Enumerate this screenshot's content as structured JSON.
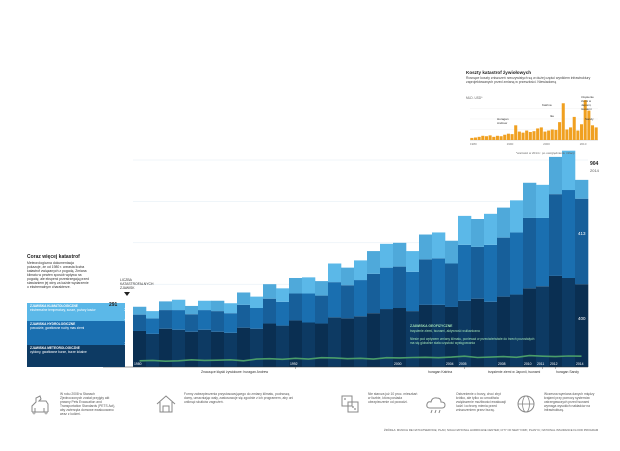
{
  "sidebar": {
    "title": "Coraz więcej katastrof",
    "text": "Meteorologiczna dokumentacja pokazuje, że od 1980 r. wzrasta liczba katastrof związanych z pogodą. Zmiana klimatu w pewien sposób wpływa na pogodę; ale eksperci przestrzegają przed stawianiem jej winy za każde wydarzenie o ekstremalnym charakterze.",
    "legend": [
      {
        "label": "ZJAWISKA KLIMATOLOGICZNE",
        "desc": "ekstremalne temperatury, susze, pożary lasów",
        "color": "#5bb8e8"
      },
      {
        "label": "ZJAWISKA HYDROLOGICZNE",
        "desc": "powodzie, gwałtowne ruchy mas ziemi",
        "color": "#1a6fb0"
      },
      {
        "label": "ZJAWISKA METEOROLOGICZNE",
        "desc": "cyklony, gwałtowne burze, burze lokalne",
        "color": "#0d3a63"
      }
    ]
  },
  "callout": {
    "label": "LICZBA KATASTROFALNYCH ZJAWISK"
  },
  "start_values": {
    "total": "291",
    "climatological": "38",
    "hydrological": "79",
    "meteorological": "174"
  },
  "end_values": {
    "total": "904",
    "year": "2014",
    "climatological": "91",
    "hydrological": "413",
    "meteorological": "400"
  },
  "geo_label": {
    "title": "ZJAWISKA GEOFIZYCZNE",
    "desc1": "trzęsienie ziemi, tsunami, aktywność wulkaniczna",
    "desc2": "Niesie pod wpływem zmiany klimatu, ponieważ w przeciwieństwie do trzech pozostałych",
    "desc3": "ma się globalnie stała częstość występowania"
  },
  "event_labels": [
    "Znaczące klęski żywiołowe: huragan Andrew",
    "huragan Katrina",
    "trzęsienie ziemi w Japonii, tsunami",
    "huragan Sandy"
  ],
  "inset": {
    "title": "Koszty katastrof żywiołowych",
    "subtitle": "Rosnące koszty zniszczeń rzeczywistych są w dużej części wynikiem infrastruktury zaprojektowanych przed zmianą w przeszłości. Niewiadomą",
    "ylabel": "MLD. USD*",
    "note": "*wartości w 2014 r. po uwzględnieniu inflacji",
    "annotations": [
      "Huragan Andrew",
      "Katrina",
      "Ike",
      "trzęsienie ziemi w Japonii, tsunami",
      "Sandy"
    ]
  },
  "footer": [
    {
      "icon": "trojan-horse-icon",
      "text": "W roku 2008 w Stanach Zjednoczonych został przyjęty akt prawny Pets Evacuation and Transportation Standards (PETS Act), aby zwierzęta domowe ewakuowano wraz z ludźmi."
    },
    {
      "icon": "house-icon",
      "text": "Formy zabezpieczenia przystosowującego do zmiany klimatu, podnoszą domy, umacniając wały, zastosowuje się zgodnie z ich programem, aby oni uniknąć skutków zagrożeń."
    },
    {
      "icon": "dice-icon",
      "text": "Nie starcza już 10 proc. mieszkań w liczbie, która posiada ubezpieczenie od powodzi."
    },
    {
      "icon": "cloud-icon",
      "text": "Ostrzeżenie o burzy, choć zbyt krótko, ale tylko co umożliwia zwiększenie możliwości ewakuacji ludzi i ochrony mienia przed zniszczeniem przez burzę."
    },
    {
      "icon": "globe-icon",
      "text": "Wczesna wymiana danych między krajami przy pomocy systemów ostrzegawczych przed tsunami wymaga wysokich nakładów na infrastrukturę."
    }
  ],
  "source": "ŹRÓDŁA: MUNICH RE NATCATSERVICE; PLAN; NOAA NATIONAL HURRICANE CENTER; CITY OF NEW YORK; PLANYC; NATIONAL INSURANCE FLOOD PROGRAM",
  "colors": {
    "meteo": "#0d3a63",
    "hydro": "#1a6fb0",
    "clim": "#5bb8e8",
    "geo": "#4a9d6a",
    "accent": "#f0a020"
  },
  "chart_data": [
    {
      "type": "area",
      "x": [
        1980,
        1981,
        1982,
        1983,
        1984,
        1985,
        1986,
        1987,
        1988,
        1989,
        1990,
        1991,
        1992,
        1993,
        1994,
        1995,
        1996,
        1997,
        1998,
        1999,
        2000,
        2001,
        2002,
        2003,
        2004,
        2005,
        2006,
        2007,
        2008,
        2009,
        2010,
        2011,
        2012,
        2013,
        2014
      ],
      "series": [
        {
          "name": "ZJAWISKA METEOROLOGICZNE",
          "values": [
            174,
            160,
            185,
            180,
            170,
            180,
            170,
            165,
            190,
            185,
            210,
            200,
            225,
            215,
            210,
            240,
            235,
            245,
            260,
            280,
            285,
            270,
            300,
            300,
            290,
            320,
            330,
            315,
            340,
            350,
            380,
            390,
            440,
            430,
            400
          ]
        },
        {
          "name": "ZJAWISKA HYDROLOGICZNE",
          "values": [
            79,
            75,
            90,
            95,
            85,
            95,
            100,
            95,
            110,
            100,
            120,
            115,
            130,
            140,
            135,
            170,
            160,
            175,
            190,
            200,
            200,
            190,
            220,
            225,
            210,
            270,
            250,
            275,
            285,
            300,
            340,
            330,
            395,
            425,
            413
          ]
        },
        {
          "name": "ZJAWISKA KLIMATOLOGICZNE",
          "values": [
            38,
            35,
            42,
            50,
            40,
            45,
            50,
            48,
            60,
            55,
            70,
            65,
            75,
            78,
            70,
            90,
            85,
            95,
            110,
            115,
            115,
            100,
            120,
            125,
            110,
            140,
            135,
            150,
            145,
            155,
            170,
            160,
            180,
            190,
            91
          ]
        },
        {
          "name": "ZJAWISKA GEOFIZYCZNE",
          "values": [
            30,
            32,
            28,
            30,
            35,
            32,
            33,
            35,
            30,
            38,
            40,
            37,
            42,
            38,
            45,
            44,
            40,
            42,
            38,
            45,
            44,
            46,
            47,
            45,
            48,
            52,
            46,
            48,
            50,
            47,
            55,
            52,
            50,
            53,
            52
          ]
        }
      ],
      "ylim": [
        0,
        1000
      ]
    },
    {
      "type": "bar",
      "title": "Koszty katastrof żywiołowych",
      "ylabel": "MLD. USD*",
      "categories": [
        1980,
        1981,
        1982,
        1983,
        1984,
        1985,
        1986,
        1987,
        1988,
        1989,
        1990,
        1991,
        1992,
        1993,
        1994,
        1995,
        1996,
        1997,
        1998,
        1999,
        2000,
        2001,
        2002,
        2003,
        2004,
        2005,
        2006,
        2007,
        2008,
        2009,
        2010,
        2011,
        2012,
        2013,
        2014
      ],
      "values": [
        10,
        12,
        15,
        20,
        18,
        22,
        15,
        20,
        18,
        25,
        30,
        28,
        70,
        40,
        35,
        45,
        38,
        42,
        55,
        60,
        40,
        45,
        50,
        48,
        85,
        175,
        50,
        60,
        110,
        45,
        75,
        190,
        140,
        70,
        60
      ],
      "ylim": [
        0,
        200
      ]
    }
  ]
}
